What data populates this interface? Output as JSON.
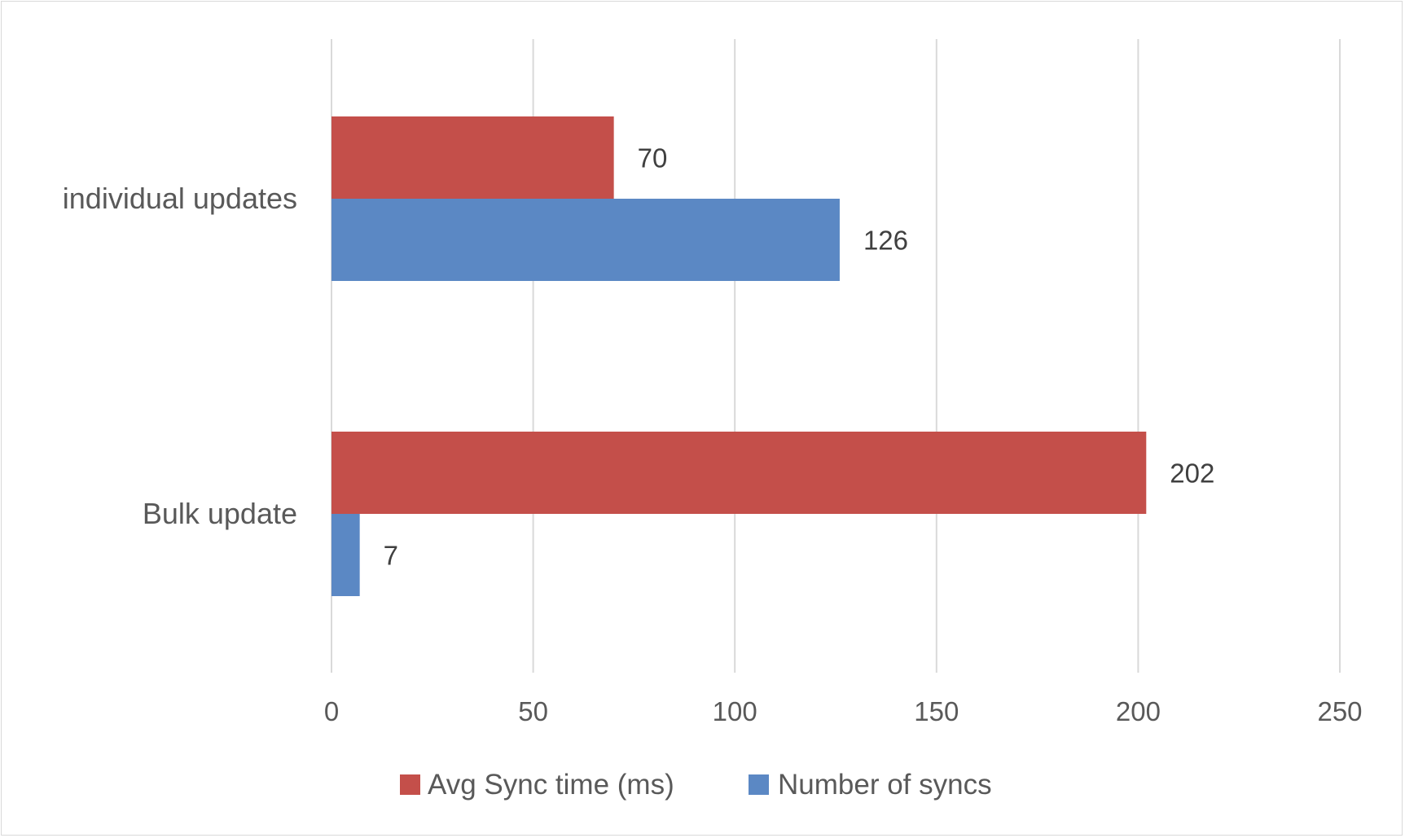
{
  "chart_data": {
    "type": "bar",
    "orientation": "horizontal",
    "categories": [
      "individual updates",
      "Bulk update"
    ],
    "series": [
      {
        "name": "Avg Sync time (ms)",
        "values": [
          70,
          202
        ],
        "color": "#c44f4a"
      },
      {
        "name": "Number of syncs",
        "values": [
          126,
          7
        ],
        "color": "#5b88c4"
      }
    ],
    "xticks": [
      "0",
      "50",
      "100",
      "150",
      "200",
      "250"
    ],
    "xlim": [
      0,
      250
    ],
    "grid": true,
    "legend": "bottom",
    "data_labels": true,
    "title": "",
    "xlabel": "",
    "ylabel": ""
  }
}
